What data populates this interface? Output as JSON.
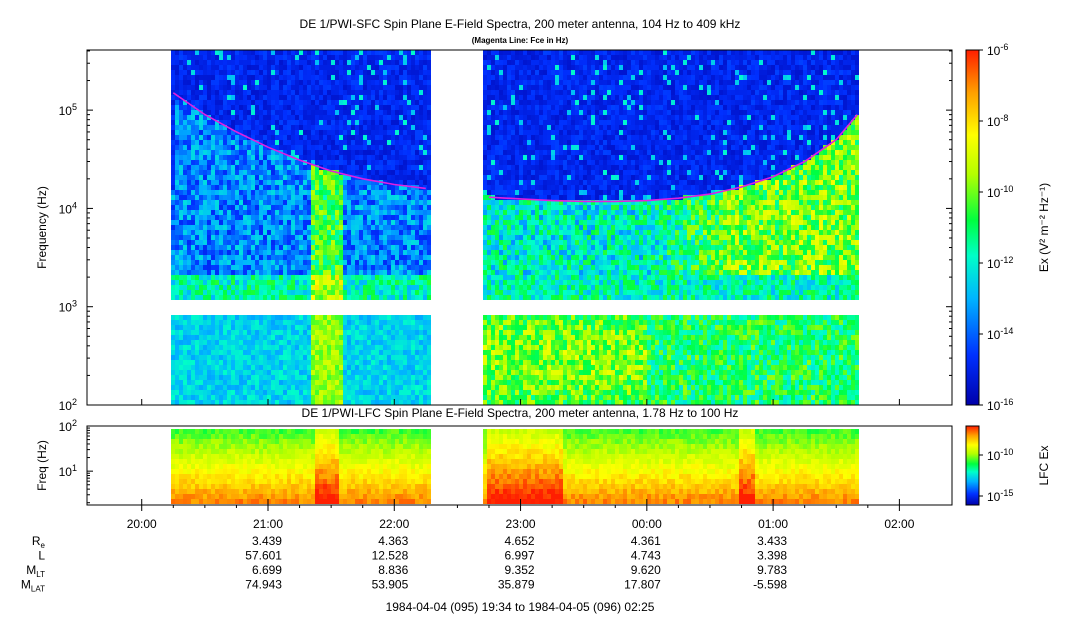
{
  "chart_data": [
    {
      "type": "heatmap",
      "title": "DE 1/PWI-SFC  Spin Plane E-Field Spectra, 200 meter antenna, 104 Hz to 409 kHz",
      "subtitle": "(Magenta Line: Fce in Hz)",
      "ylabel": "Frequency (Hz)",
      "y_scale": "log",
      "ylim": [
        100,
        409000
      ],
      "y_ticks": [
        {
          "value": 100,
          "label": "10²"
        },
        {
          "value": 1000,
          "label": "10³"
        },
        {
          "value": 10000,
          "label": "10⁴"
        },
        {
          "value": 100000,
          "label": "10⁵"
        }
      ],
      "colorbar": {
        "label": "Ex (V² m⁻² Hz⁻¹)",
        "scale": "log",
        "range": [
          1e-16,
          1e-06
        ],
        "ticks": [
          {
            "value": 1e-06,
            "label": "10⁻⁶"
          },
          {
            "value": 1e-08,
            "label": "10⁻⁸"
          },
          {
            "value": 1e-10,
            "label": "10⁻¹⁰"
          },
          {
            "value": 1e-12,
            "label": "10⁻¹²"
          },
          {
            "value": 1e-14,
            "label": "10⁻¹⁴"
          },
          {
            "value": 1e-16,
            "label": "10⁻¹⁶"
          }
        ]
      },
      "data_gaps": [
        [
          "1984-04-04T19:34",
          "1984-04-04T20:14"
        ],
        [
          "1984-04-04T22:17",
          "1984-04-04T22:43"
        ],
        [
          "1984-04-05T01:40",
          "1984-04-05T02:25"
        ]
      ],
      "fce_line": {
        "color": "#e020e0",
        "series": [
          {
            "x": [
              "20:15",
              "20:30",
              "20:45",
              "21:00",
              "21:15",
              "21:30",
              "21:45",
              "22:00",
              "22:15"
            ],
            "y": [
              150000,
              90000,
              60000,
              42000,
              31000,
              24000,
              20000,
              17500,
              16000
            ]
          },
          {
            "x": [
              "22:45",
              "23:00",
              "23:15",
              "23:30",
              "23:45",
              "00:00",
              "00:15",
              "00:30",
              "00:45",
              "01:00",
              "01:15",
              "01:30",
              "01:40"
            ],
            "y": [
              13000,
              12500,
              12000,
              11800,
              11800,
              12000,
              12700,
              14000,
              16500,
              21000,
              30000,
              50000,
              90000
            ]
          }
        ]
      }
    },
    {
      "type": "heatmap",
      "title": "DE 1/PWI-LFC  Spin Plane E-Field Spectra, 200 meter antenna, 1.78 Hz to 100 Hz",
      "ylabel": "Freq (Hz)",
      "y_scale": "log",
      "ylim": [
        1.78,
        100
      ],
      "y_ticks": [
        {
          "value": 10,
          "label": "10¹"
        },
        {
          "value": 100,
          "label": "10²"
        }
      ],
      "colorbar": {
        "label": "LFC Ex",
        "scale": "log",
        "ticks": [
          {
            "value": 1e-10,
            "label": "10⁻¹⁰"
          },
          {
            "value": 1e-15,
            "label": "10⁻¹⁵"
          }
        ]
      }
    }
  ],
  "time_axis": {
    "range_label": "1984-04-04 (095) 19:34 to 1984-04-05 (096) 02:25",
    "ticks": [
      "20:00",
      "21:00",
      "22:00",
      "23:00",
      "00:00",
      "01:00",
      "02:00"
    ]
  },
  "ephemeris": {
    "rows": [
      {
        "label": "R",
        "sub": "e",
        "values": [
          "3.439",
          "4.363",
          "4.652",
          "4.361",
          "3.433"
        ]
      },
      {
        "label": "L",
        "sub": "",
        "values": [
          "57.601",
          "12.528",
          "6.997",
          "4.743",
          "3.398"
        ]
      },
      {
        "label": "M",
        "sub": "LT",
        "values": [
          "6.699",
          "8.836",
          "9.352",
          "9.620",
          "9.783"
        ]
      },
      {
        "label": "M",
        "sub": "LAT",
        "values": [
          "74.943",
          "53.905",
          "35.879",
          "17.807",
          "-5.598"
        ]
      }
    ]
  }
}
